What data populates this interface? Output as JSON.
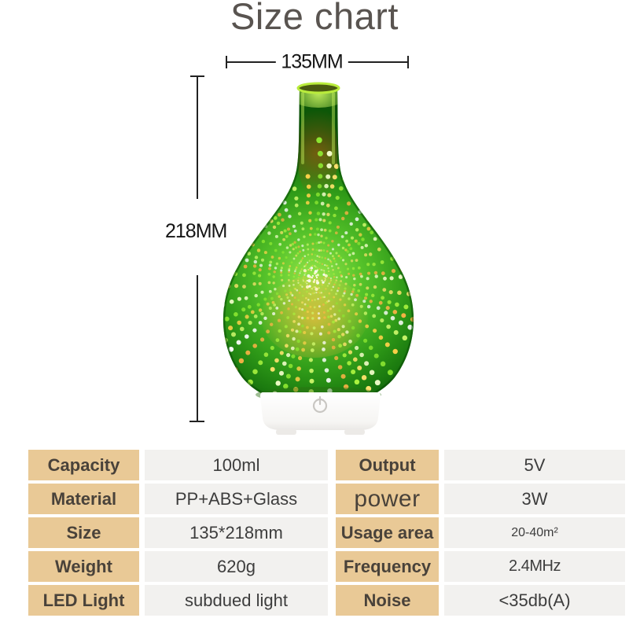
{
  "title": "Size chart",
  "dimensions": {
    "width_label": "135MM",
    "height_label": "218MM"
  },
  "product": {
    "name": "3d-firework-glass-aroma-diffuser",
    "colors": {
      "glass_green_bright": "#9ae84c",
      "glass_green_mid": "#3fae21",
      "glass_green_dark": "#0d5708",
      "amber_glow": "#ffb53e",
      "base_white": "#ffffff"
    },
    "firework_colors": [
      "#f6ffce",
      "#ffe36e",
      "#aaf23f",
      "#ffb347",
      "#ffffff",
      "#d2fa6e",
      "#ffd24a",
      "#8ee832"
    ]
  },
  "spec_table": {
    "label_bg": "#e9c996",
    "value_bg": "#f2f1ef",
    "rows": [
      {
        "left_label": "Capacity",
        "left_value": "100ml",
        "right_label": "Output",
        "right_value": "5V"
      },
      {
        "left_label": "Material",
        "left_value": "PP+ABS+Glass",
        "right_label": "power",
        "right_value": "3W"
      },
      {
        "left_label": "Size",
        "left_value": "135*218mm",
        "right_label": "Usage area",
        "right_value": "20-40m²"
      },
      {
        "left_label": "Weight",
        "left_value": "620g",
        "right_label": "Frequency",
        "right_value": "2.4MHz"
      },
      {
        "left_label": "LED Light",
        "left_value": "subdued light",
        "right_label": "Noise",
        "right_value": "<35db(A)"
      }
    ]
  }
}
